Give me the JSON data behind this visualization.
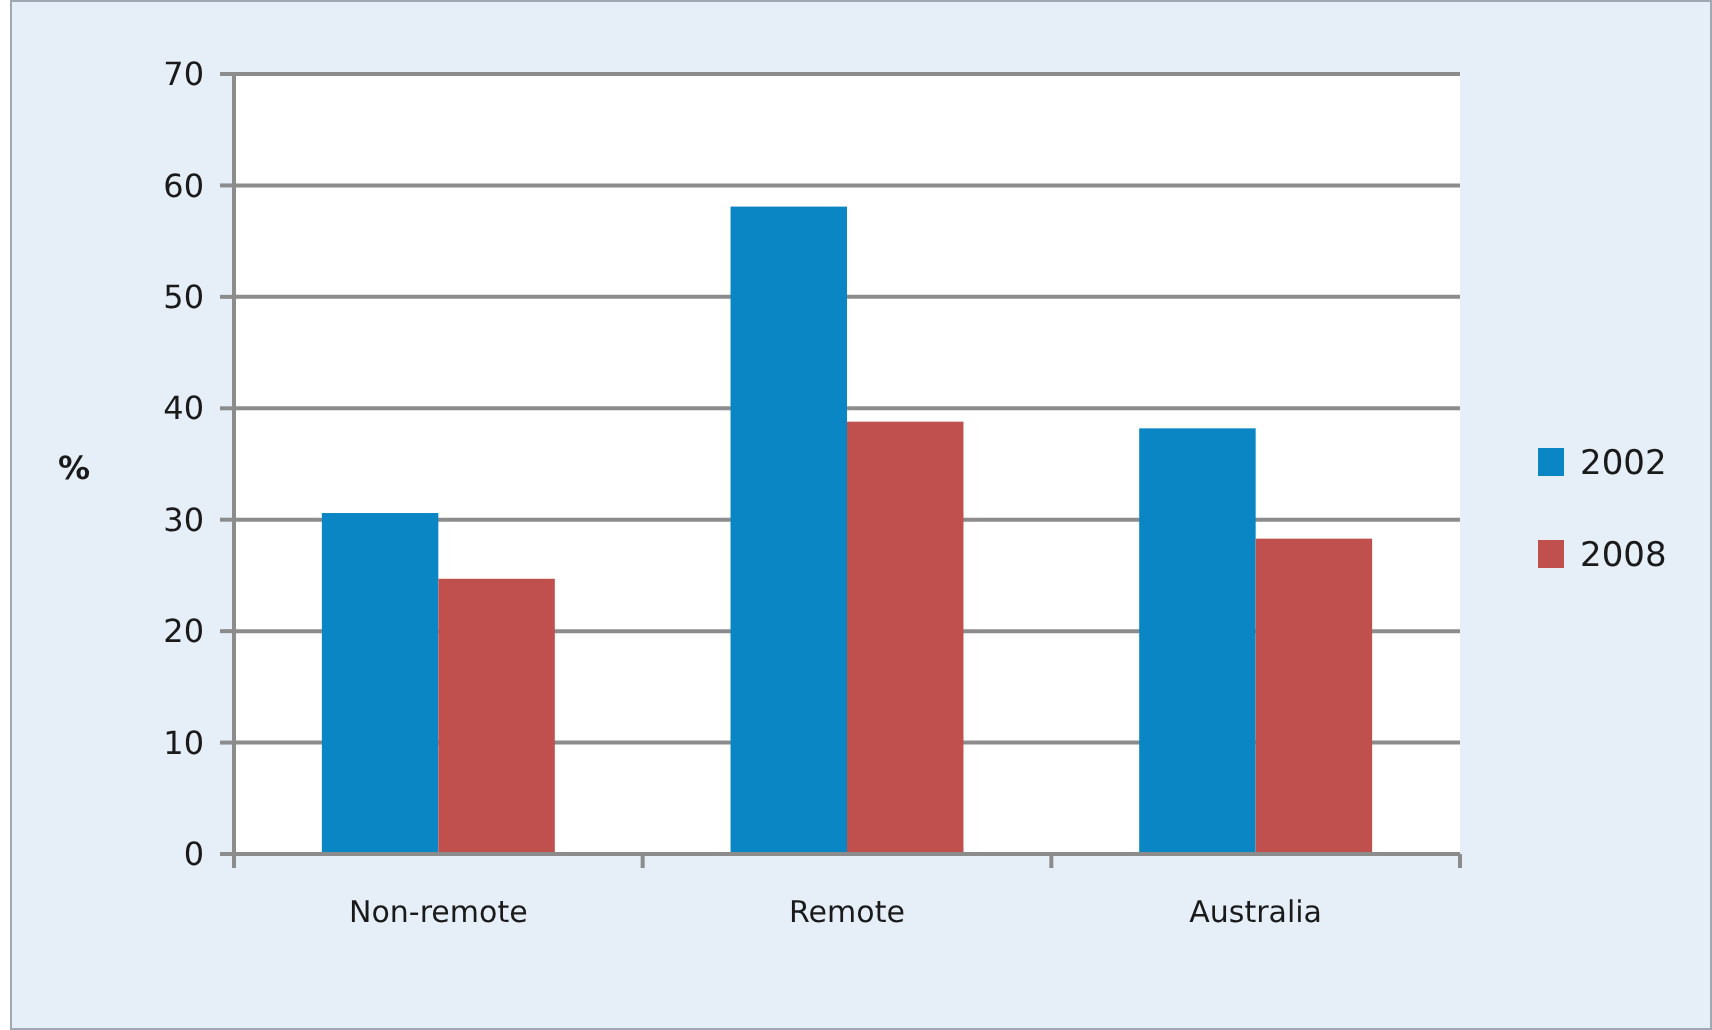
{
  "chart_data": {
    "type": "bar",
    "ylabel": "%",
    "categories": [
      "Non-remote",
      "Remote",
      "Australia"
    ],
    "series": [
      {
        "name": "2002",
        "color": "#0b86c4",
        "values": [
          30.6,
          58.1,
          38.2
        ]
      },
      {
        "name": "2008",
        "color": "#c0504d",
        "values": [
          24.7,
          38.8,
          28.3
        ]
      }
    ],
    "ylim": [
      0,
      70
    ],
    "yticks": [
      0,
      10,
      20,
      30,
      40,
      50,
      60,
      70
    ],
    "grid": "y",
    "legend": "right"
  }
}
